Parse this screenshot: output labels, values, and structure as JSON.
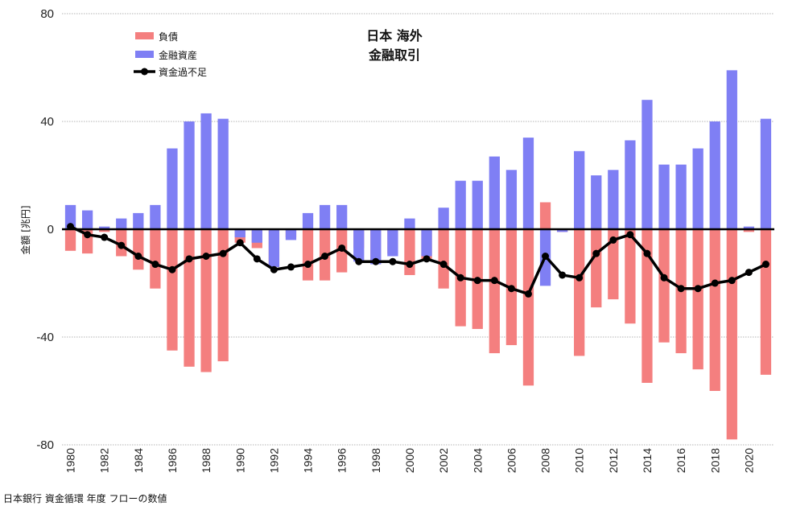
{
  "chart_data": {
    "type": "bar",
    "title": [
      "日本 海外",
      "金融取引"
    ],
    "ylabel": "金額 [兆円]",
    "source": "日本銀行 資金循環 年度 フローの数値",
    "ylim": [
      -80,
      80
    ],
    "yticks": [
      80,
      40,
      0,
      -40,
      -80
    ],
    "grid": true,
    "legend_position": "top-left",
    "x": [
      1980,
      1981,
      1982,
      1983,
      1984,
      1985,
      1986,
      1987,
      1988,
      1989,
      1990,
      1991,
      1992,
      1993,
      1994,
      1995,
      1996,
      1997,
      1998,
      1999,
      2000,
      2001,
      2002,
      2003,
      2004,
      2005,
      2006,
      2007,
      2008,
      2009,
      2010,
      2011,
      2012,
      2013,
      2014,
      2015,
      2016,
      2017,
      2018,
      2019,
      2020,
      2021
    ],
    "xtick_labels": [
      "1980",
      "1982",
      "1984",
      "1986",
      "1988",
      "1990",
      "1992",
      "1994",
      "1996",
      "1998",
      "2000",
      "2002",
      "2004",
      "2006",
      "2008",
      "2010",
      "2012",
      "2014",
      "2016",
      "2018",
      "2020"
    ],
    "series": [
      {
        "name": "負債",
        "kind": "bar",
        "color": "#F47F7F",
        "values": [
          -8,
          -9,
          -1,
          -10,
          -15,
          -22,
          -45,
          -51,
          -53,
          -49,
          -5,
          -7,
          -14,
          -3,
          -19,
          -19,
          -16,
          -7,
          -12,
          -9,
          -17,
          -11,
          -22,
          -36,
          -37,
          -46,
          -43,
          -58,
          10,
          -1,
          -47,
          -29,
          -26,
          -35,
          -57,
          -42,
          -46,
          -52,
          -60,
          -78,
          -1,
          -54
        ]
      },
      {
        "name": "金融資産",
        "kind": "bar",
        "color": "#7F7FF4",
        "values": [
          9,
          7,
          1,
          4,
          6,
          9,
          30,
          40,
          43,
          41,
          -3,
          -5,
          -14,
          -4,
          6,
          9,
          9,
          -12,
          -13,
          -10,
          4,
          -10,
          8,
          18,
          18,
          27,
          22,
          34,
          -21,
          -1,
          29,
          20,
          22,
          33,
          48,
          24,
          24,
          30,
          40,
          59,
          1,
          41
        ]
      },
      {
        "name": "資金過不足",
        "kind": "line",
        "color": "#000000",
        "values": [
          1,
          -2,
          -3,
          -6,
          -10,
          -13,
          -15,
          -11,
          -10,
          -9,
          -5,
          -11,
          -15,
          -14,
          -13,
          -10,
          -7,
          -12,
          -12,
          -12,
          -13,
          -11,
          -13,
          -18,
          -19,
          -19,
          -22,
          -24,
          -10,
          -17,
          -18,
          -9,
          -4,
          -2,
          -9,
          -18,
          -22,
          -22,
          -20,
          -19,
          -16,
          -13
        ]
      }
    ]
  }
}
